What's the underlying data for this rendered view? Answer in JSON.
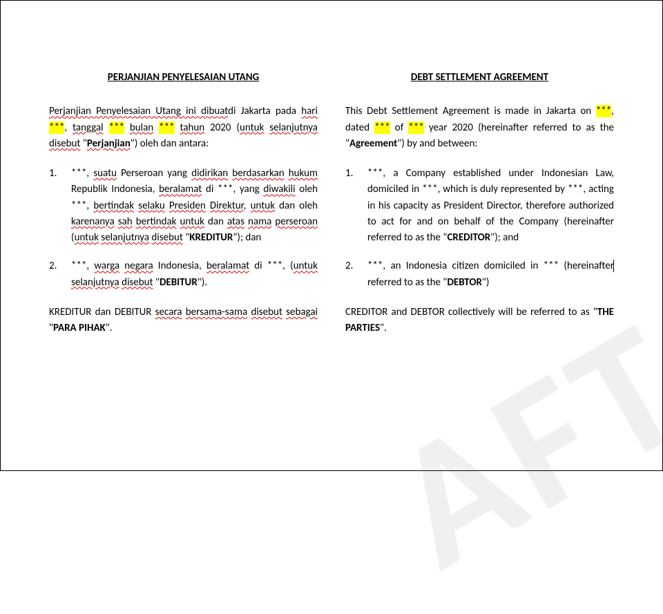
{
  "watermark_text": "AFT",
  "left": {
    "title": "PERJANJIAN PENYELESAIAN UTANG",
    "intro_parts": {
      "p1": "Perjanjian Penyelesaian Utang ini dibuat",
      "p2": "di Jakarta pada ",
      "hari": "hari",
      "sp1": " ",
      "hl1": "***",
      "p3": ", ",
      "tanggal": "tanggal",
      "sp2": " ",
      "hl2": "***",
      "sp3": " ",
      "bulan": "bulan",
      "sp4": " ",
      "hl3": "***",
      "sp5": " ",
      "tahun": "tahun",
      "p4": " 2020 (",
      "untuk": "untuk",
      "sp6": " ",
      "selanjutnya": "selanjutnya",
      "sp7": " ",
      "disebut": "disebut",
      "p5": " \"",
      "perjanjian": "Perjanjian",
      "p6": "\") oleh dan antara:"
    },
    "item1_parts": {
      "num": "1.",
      "stars": "***",
      "t1": ", ",
      "suatu": "suatu",
      "t2": " Perseroan yang ",
      "didirikan": "didirikan",
      "sp1": " ",
      "berdasarkan": "berdasarkan",
      "sp2": " ",
      "hukum": "hukum",
      "t3": " Republik Indonesia, ",
      "beralamat": "beralamat",
      "t4": " di ***, yang ",
      "diwakili": "diwakili",
      "t5": " oleh ***, ",
      "bertindak": "bertindak",
      "sp3": " ",
      "selaku": "selaku",
      "sp4": " ",
      "presiden": "Presiden",
      "sp5": " ",
      "direktur": "Direktur",
      "t6": ", ",
      "untuk": "untuk",
      "t7": " dan oleh ",
      "karenanya": "karenanya",
      "sp6": " ",
      "sah": "sah",
      "sp7": " ",
      "bertindak2": "bertindak",
      "sp8": " ",
      "untuk2": "untuk",
      "t8": " dan ",
      "atas": "atas",
      "sp9": " ",
      "nama": "nama",
      "sp10": " ",
      "perseroan": "perseroan",
      "t9": " (",
      "untuk3": "untuk",
      "sp11": " ",
      "selanjutnya": "selanjutnya",
      "sp12": " ",
      "disebut": "disebut",
      "t10": " \"",
      "kreditur": "KREDITUR",
      "t11": "\"); dan"
    },
    "item2_parts": {
      "num": "2.",
      "stars": "***",
      "t1": ", ",
      "warga": "warga",
      "sp1": " ",
      "negara": "negara",
      "t2": " Indonesia, ",
      "beralamat": "beralamat",
      "t3": " di ***, (",
      "untuk": "untuk",
      "sp2": " ",
      "selanjutnya": "selanjutnya",
      "sp3": " ",
      "disebut": "disebut",
      "t4": " \"",
      "debitur": "DEBITUR",
      "t5": "\")."
    },
    "closing_parts": {
      "t1": "KREDITUR dan DEBITUR ",
      "secara": "secara",
      "sp1": " ",
      "bersama": "bersama-sama",
      "sp2": " ",
      "disebut": "disebut",
      "sp3": " ",
      "sebagai": "sebagai",
      "t2": " \"",
      "para": "PARA PIHAK",
      "t3": "\"."
    }
  },
  "right": {
    "title": "DEBT SETTLEMENT AGREEMENT",
    "intro_parts": {
      "t1": "This Debt Settlement Agreement is made in Jakarta on ",
      "hl1": "***",
      "t2": ", dated ",
      "hl2": "***",
      "t3": " of ",
      "hl3": "***",
      "t4": " year 2020 (hereinafter referred to as the \"",
      "agreement": "Agreement",
      "t5": "\") by and between:"
    },
    "item1_parts": {
      "num": "1.",
      "t1": "***, a Company established under Indonesian Law, domiciled in ***, which is duly represented by ***, acting in his capacity as President Director, therefore authorized to act for and on behalf of the Company (hereinafter referred to as the \"",
      "creditor": "CREDITOR",
      "t2": "\"); and"
    },
    "item2_parts": {
      "num": "2.",
      "t1": "***, an Indonesia citizen domiciled in *** (hereinafter ",
      "t1b": "referred to as the \"",
      "debtor": "DEBTOR",
      "t2": "\")"
    },
    "closing_parts": {
      "t1": "CREDITOR and DEBTOR collectively will be referred to as \"",
      "parties": "THE PARTIES",
      "t2": "\"."
    }
  },
  "colors": {
    "highlight": "#ffff00",
    "watermark": "rgba(0,0,0,0.06)",
    "spellcheck": "#d00",
    "text": "#000000",
    "background": "#ffffff"
  },
  "typography": {
    "body_fontsize": 15,
    "line_height": 1.55,
    "watermark_fontsize": 260
  }
}
